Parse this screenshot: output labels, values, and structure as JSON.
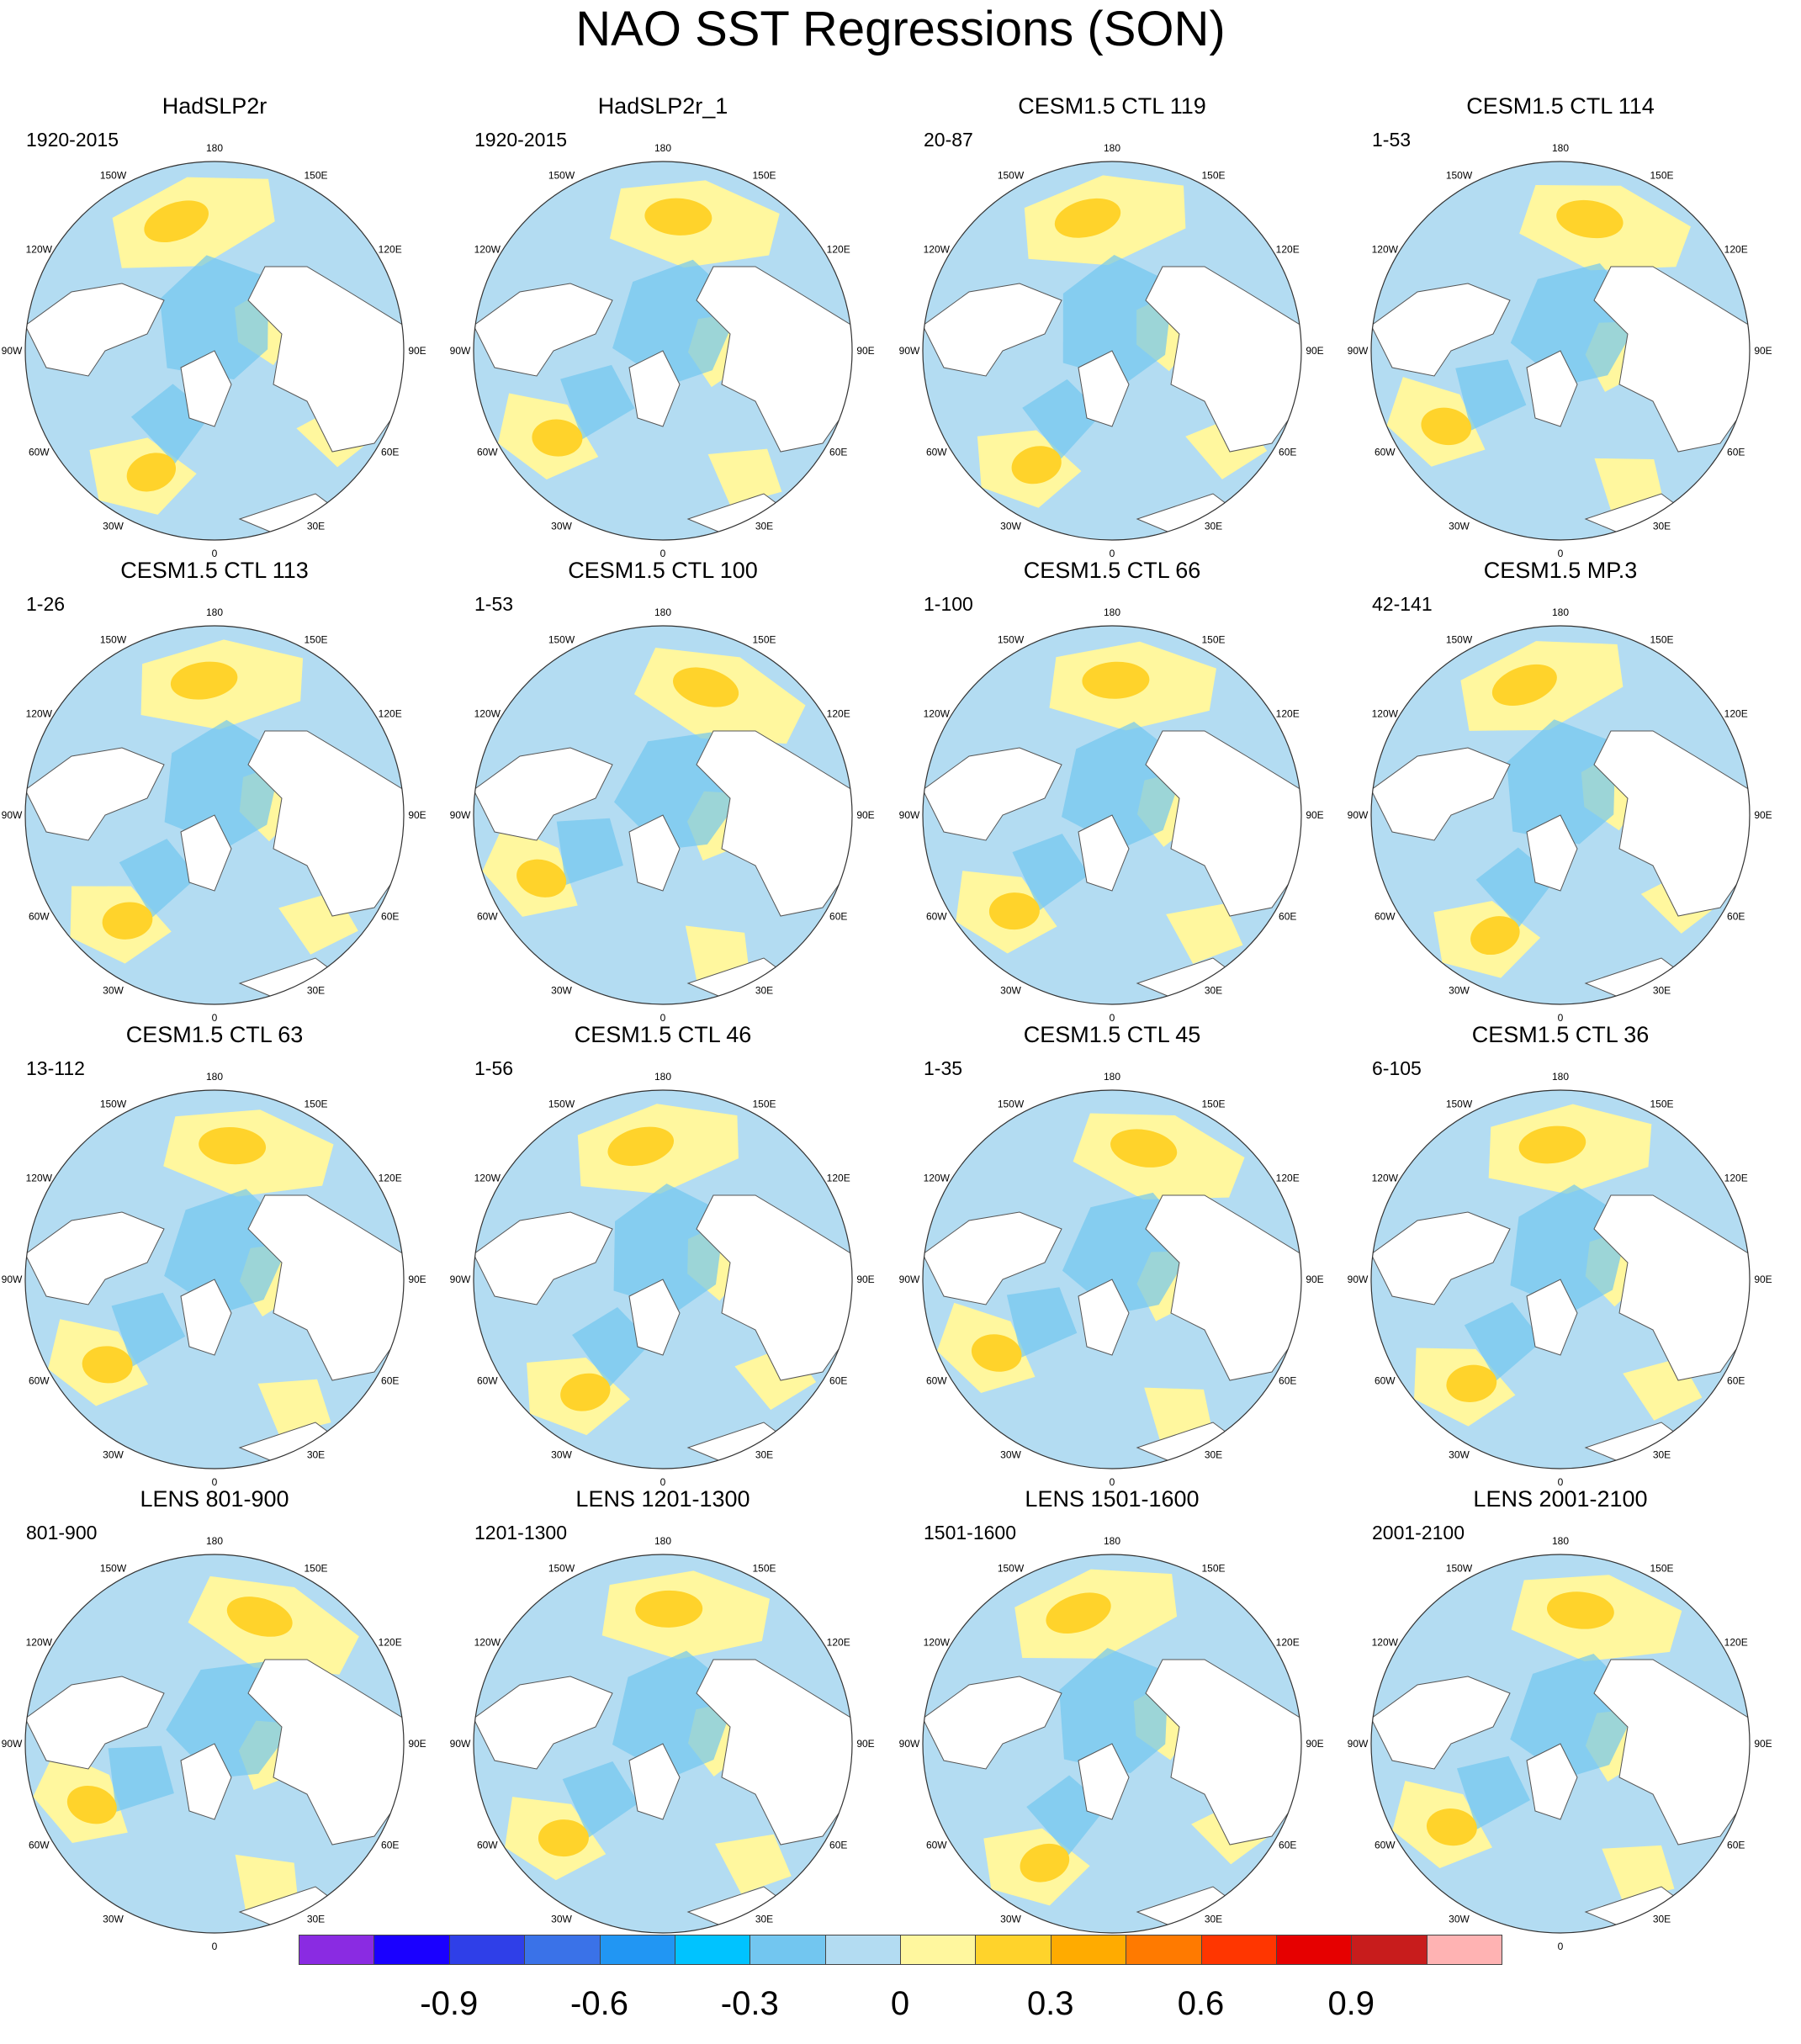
{
  "title": "NAO SST Regressions (SON)",
  "lon_labels": [
    "180",
    "150E",
    "120E",
    "90E",
    "60E",
    "30E",
    "0",
    "30W",
    "60W",
    "90W",
    "120W",
    "150W"
  ],
  "panels": [
    {
      "title": "HadSLP2r",
      "period": "1920-2015"
    },
    {
      "title": "HadSLP2r_1",
      "period": "1920-2015"
    },
    {
      "title": "CESM1.5 CTL 119",
      "period": "20-87"
    },
    {
      "title": "CESM1.5 CTL 114",
      "period": "1-53"
    },
    {
      "title": "CESM1.5 CTL 113",
      "period": "1-26"
    },
    {
      "title": "CESM1.5 CTL 100",
      "period": "1-53"
    },
    {
      "title": "CESM1.5 CTL 66",
      "period": "1-100"
    },
    {
      "title": "CESM1.5 MP.3",
      "period": "42-141"
    },
    {
      "title": "CESM1.5 CTL 63",
      "period": "13-112"
    },
    {
      "title": "CESM1.5 CTL 46",
      "period": "1-56"
    },
    {
      "title": "CESM1.5 CTL 45",
      "period": "1-35"
    },
    {
      "title": "CESM1.5 CTL 36",
      "period": "6-105"
    },
    {
      "title": "LENS 801-900",
      "period": "801-900"
    },
    {
      "title": "LENS 1201-1300",
      "period": "1201-1300"
    },
    {
      "title": "LENS 1501-1600",
      "period": "1501-1600"
    },
    {
      "title": "LENS 2001-2100",
      "period": "2001-2100"
    }
  ],
  "colorbar": {
    "colors": [
      "#8a2be2",
      "#1a00ff",
      "#2f3fe8",
      "#3a72e8",
      "#2196f3",
      "#00c3ff",
      "#72c6f0",
      "#b3dcf2",
      "#fff79e",
      "#ffd32b",
      "#ffab00",
      "#ff7a00",
      "#ff3600",
      "#e60000",
      "#c81c1c",
      "#ffb3b3"
    ],
    "tick_labels": [
      "-0.9",
      "-0.6",
      "-0.3",
      "0",
      "0.3",
      "0.6",
      "0.9"
    ],
    "tick_values": [
      -0.9,
      -0.6,
      -0.3,
      0,
      0.3,
      0.6,
      0.9
    ],
    "range": [
      -1.2,
      1.2
    ]
  }
}
